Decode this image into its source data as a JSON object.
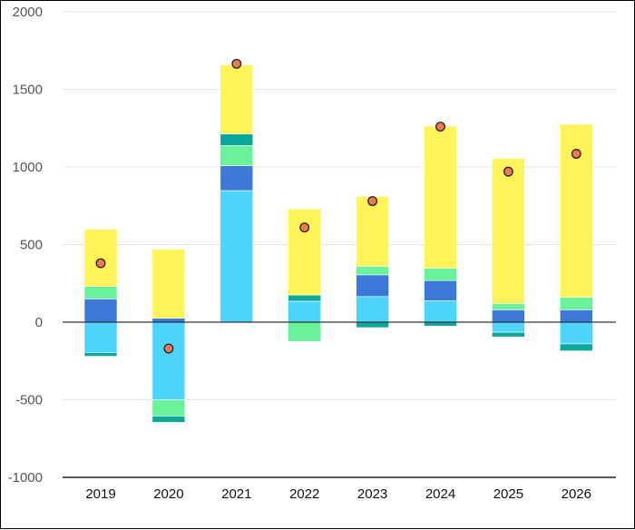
{
  "chart_data": {
    "type": "bar",
    "stacked": true,
    "categories": [
      "2019",
      "2020",
      "2021",
      "2022",
      "2023",
      "2024",
      "2025",
      "2026"
    ],
    "ylim": [
      -1000,
      2000
    ],
    "yticks": [
      -1000,
      -500,
      0,
      500,
      1000,
      1500,
      2000
    ],
    "ytick_labels": [
      "-1000",
      "-500",
      "0",
      "500",
      "1000",
      "1500",
      "2000"
    ],
    "grid": true,
    "legend": "none",
    "series": [
      {
        "color": "#4dd4fd",
        "values": [
          -195,
          -500,
          848,
          135,
          165,
          138,
          -65,
          -140
        ]
      },
      {
        "color": "#3b78d8",
        "values": [
          150,
          25,
          160,
          0,
          140,
          130,
          80,
          80
        ]
      },
      {
        "color": "#6af29a",
        "values": [
          80,
          -105,
          130,
          -125,
          55,
          80,
          40,
          80
        ]
      },
      {
        "color": "#0aa89a",
        "values": [
          -25,
          -40,
          75,
          40,
          -35,
          -25,
          -30,
          -45
        ]
      },
      {
        "color": "#fef459",
        "values": [
          370,
          445,
          445,
          555,
          450,
          915,
          935,
          1115
        ]
      }
    ],
    "markers": {
      "color": "#f07a50",
      "values": [
        380,
        -170,
        1665,
        610,
        780,
        1260,
        970,
        1085
      ]
    }
  }
}
